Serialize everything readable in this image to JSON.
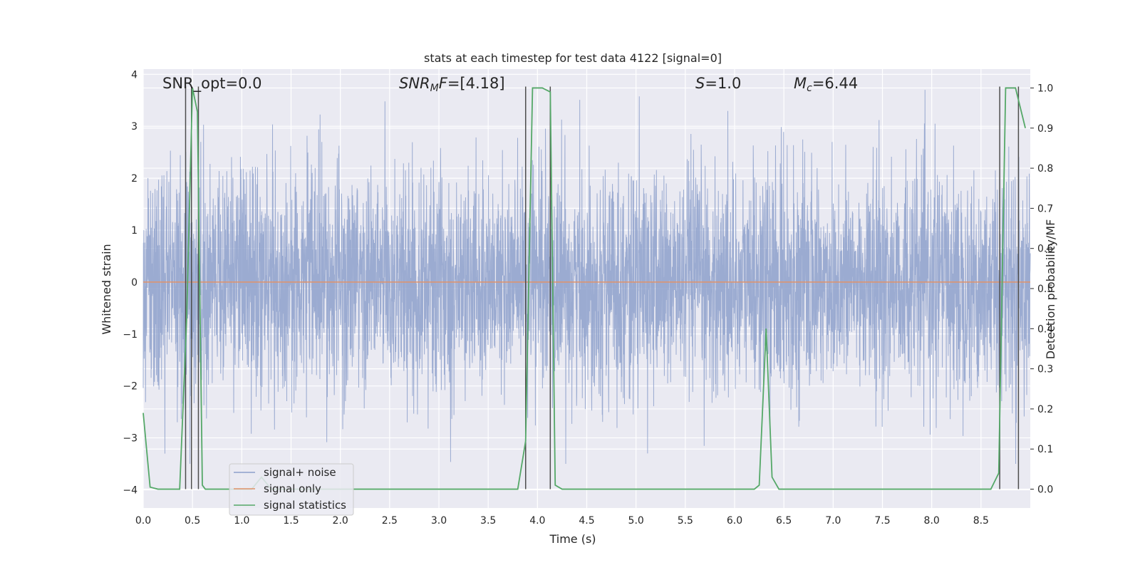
{
  "chart_data": {
    "type": "line",
    "title": "stats at each timestep for test data 4122 [signal=0]",
    "xlabel": "Time (s)",
    "ylabel_left": "Whitened strain",
    "ylabel_right": "Detection probability/MF",
    "xlim": [
      0.0,
      9.0
    ],
    "ylim_left": [
      -4.35,
      4.1
    ],
    "ylim_right": [
      -0.047,
      1.047
    ],
    "x_ticks": [
      "0.0",
      "0.5",
      "1.0",
      "1.5",
      "2.0",
      "2.5",
      "3.0",
      "3.5",
      "4.0",
      "4.5",
      "5.0",
      "5.5",
      "6.0",
      "6.5",
      "7.0",
      "7.5",
      "8.0",
      "8.5"
    ],
    "y_ticks_left": [
      "4",
      "3",
      "2",
      "1",
      "0",
      "−1",
      "−2",
      "−3",
      "−4"
    ],
    "y_ticks_right": [
      "1.0",
      "0.9",
      "0.8",
      "0.7",
      "0.6",
      "0.5",
      "0.4",
      "0.3",
      "0.2",
      "0.1",
      "0.0"
    ],
    "grid": true,
    "legend_position": "lower-left",
    "annotations": {
      "snr_opt": "SNR_opt=0.0",
      "snr_mf_sym": "SNR",
      "snr_mf_sub": "M",
      "snr_mf_sym2": "F",
      "snr_mf_val": "=[4.18]",
      "s_sym": "S",
      "s_val": "=1.0",
      "mc_sym": "M",
      "mc_sub": "c",
      "mc_val": "=6.44"
    },
    "series": [
      {
        "name": "signal+ noise",
        "color": "#8da0cb",
        "description_values": "dense noise between about -3.5 and 3.7 over 0-9 s",
        "amplitude_range": [
          -3.5,
          3.7
        ]
      },
      {
        "name": "signal only",
        "color": "#e0926a",
        "x": [
          0.0,
          9.0
        ],
        "y": [
          0.0,
          0.0
        ]
      },
      {
        "name": "signal statistics",
        "color": "#55a868",
        "x": [
          0.0,
          0.07,
          0.15,
          0.37,
          0.44,
          0.5,
          0.55,
          0.6,
          0.63,
          0.7,
          1.1,
          1.2,
          1.3,
          3.8,
          3.88,
          3.95,
          4.05,
          4.13,
          4.18,
          4.25,
          6.2,
          6.25,
          6.32,
          6.38,
          6.45,
          8.6,
          8.68,
          8.75,
          8.85,
          8.95
        ],
        "y": [
          0.19,
          0.005,
          0.0,
          0.0,
          0.42,
          1.0,
          0.94,
          0.01,
          0.0,
          0.0,
          0.0,
          0.03,
          0.0,
          0.0,
          0.12,
          1.0,
          1.0,
          0.99,
          0.01,
          0.0,
          0.0,
          0.01,
          0.4,
          0.03,
          0.0,
          0.0,
          0.04,
          1.0,
          1.0,
          0.9
        ]
      }
    ],
    "markers": {
      "description": "vertical dark lines marking detection spans",
      "x": [
        0.43,
        0.49,
        0.56,
        3.88,
        4.13,
        8.69,
        8.88
      ]
    }
  }
}
